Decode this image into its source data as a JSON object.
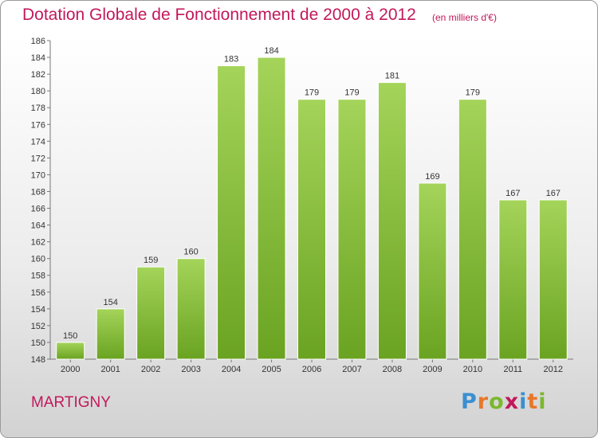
{
  "header": {
    "title": "Dotation Globale de Fonctionnement de 2000 à 2012",
    "subtitle": "(en milliers d'€)"
  },
  "footer": {
    "city": "MARTIGNY",
    "logo": "Proxiti",
    "logo_colors": [
      "#3a8fd1",
      "#e8772a",
      "#7bb82e",
      "#c2185b",
      "#3a8fd1",
      "#e8772a",
      "#7bb82e"
    ]
  },
  "chart_data": {
    "type": "bar",
    "categories": [
      "2000",
      "2001",
      "2002",
      "2003",
      "2004",
      "2005",
      "2006",
      "2007",
      "2008",
      "2009",
      "2010",
      "2011",
      "2012"
    ],
    "values": [
      150,
      154,
      159,
      160,
      183,
      184,
      179,
      179,
      181,
      169,
      179,
      167,
      167
    ],
    "data_labels": [
      "150",
      "154",
      "159",
      "160",
      "183",
      "184",
      "179",
      "179",
      "181",
      "169",
      "179",
      "167",
      "167"
    ],
    "ylim": [
      148,
      186
    ],
    "yticks": [
      "148",
      "150",
      "152",
      "154",
      "156",
      "158",
      "160",
      "162",
      "164",
      "166",
      "168",
      "170",
      "172",
      "174",
      "176",
      "178",
      "180",
      "182",
      "184",
      "186"
    ],
    "grid": false,
    "legend": "none",
    "bar_color_light": "#a4d45a",
    "bar_color_dark": "#6aa321"
  }
}
